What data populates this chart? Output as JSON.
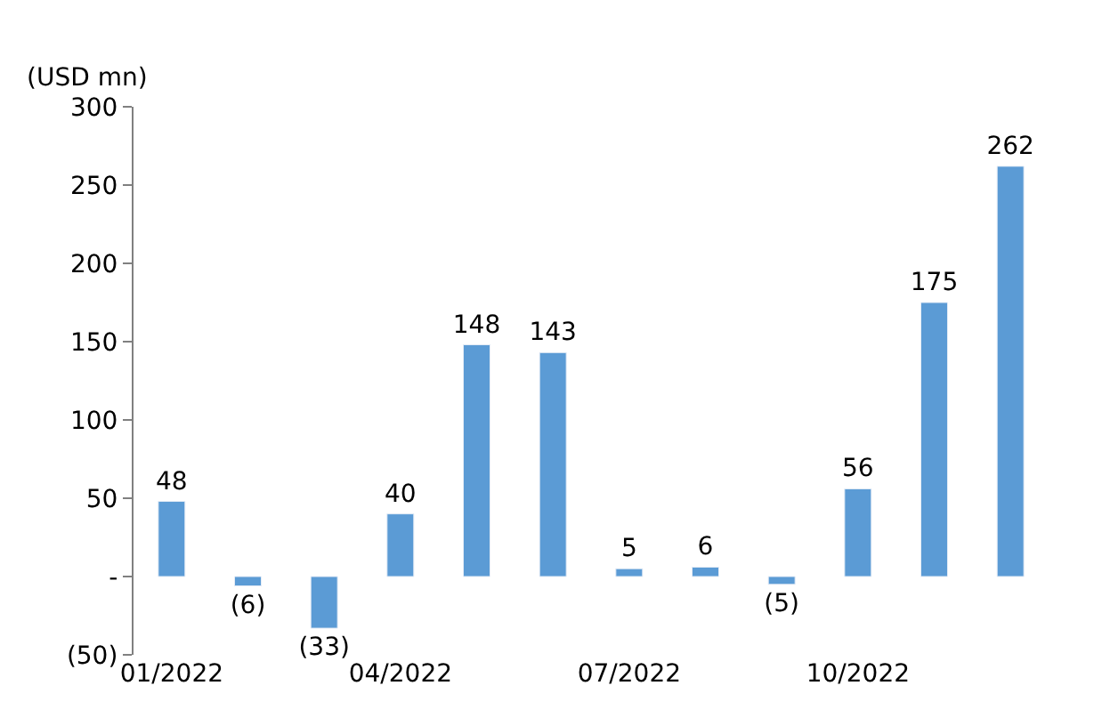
{
  "chart_data": {
    "type": "bar",
    "ylabel": "(USD mn)",
    "categories": [
      "01/2022",
      null,
      null,
      "04/2022",
      null,
      null,
      "07/2022",
      null,
      null,
      "10/2022",
      null,
      null
    ],
    "values": [
      48,
      -6,
      -33,
      40,
      148,
      143,
      5,
      6,
      -5,
      56,
      175,
      262
    ],
    "value_labels": [
      "48",
      "(6)",
      "(33)",
      "40",
      "148",
      "143",
      "5",
      "6",
      "(5)",
      "56",
      "175",
      "262"
    ],
    "color": "#5b9bd5",
    "ylim": [
      -50,
      300
    ],
    "yticks": [
      {
        "value": -50,
        "label": "(50)"
      },
      {
        "value": 0,
        "label": "-"
      },
      50,
      100,
      150,
      200,
      250,
      300
    ],
    "legend": false
  }
}
